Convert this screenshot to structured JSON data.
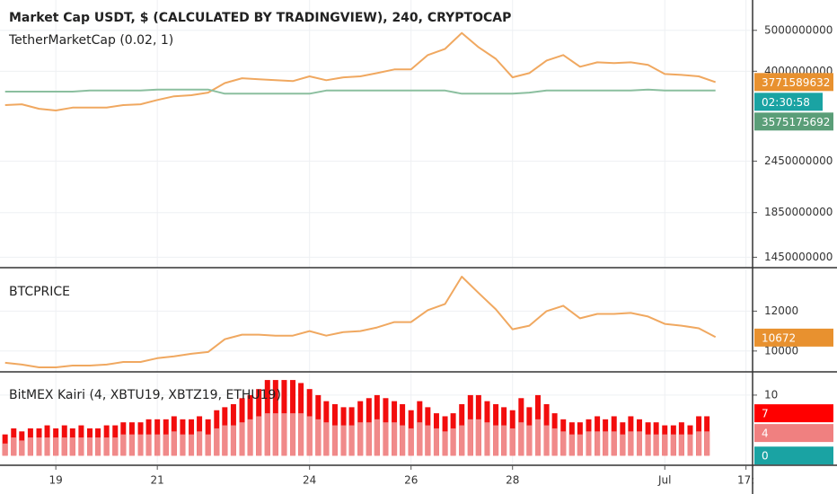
{
  "chart_data": [
    {
      "type": "line",
      "title": "Market Cap USDT, $ (CALCULATED BY TRADINGVIEW), 240, CRYPTOCAP",
      "log": true,
      "x": [
        18,
        18.33,
        18.67,
        19,
        19.33,
        19.67,
        20,
        20.33,
        20.67,
        21,
        21.33,
        21.67,
        22,
        22.33,
        22.67,
        23,
        23.33,
        23.67,
        24,
        24.33,
        24.67,
        25,
        25.33,
        25.67,
        26,
        26.33,
        26.67,
        27,
        27.33,
        27.67,
        28,
        28.33,
        28.67,
        29,
        29.33,
        29.67,
        30,
        30.33,
        30.67,
        31,
        31.33,
        31.67,
        32
      ],
      "xlim": [
        17.9,
        32.73
      ],
      "series": [
        {
          "color": "#f0a860",
          "values": [
            3325000000,
            3340000000,
            3260000000,
            3230000000,
            3280000000,
            3280000000,
            3280000000,
            3325000000,
            3340000000,
            3420000000,
            3490000000,
            3510000000,
            3560000000,
            3750000000,
            3850000000,
            3830000000,
            3810000000,
            3790000000,
            3890000000,
            3810000000,
            3870000000,
            3890000000,
            3960000000,
            4040000000,
            4040000000,
            4370000000,
            4520000000,
            4930000000,
            4560000000,
            4280000000,
            3870000000,
            3960000000,
            4240000000,
            4370000000,
            4100000000,
            4200000000,
            4180000000,
            4200000000,
            4140000000,
            3940000000,
            3920000000,
            3890000000,
            3770000000
          ]
        },
        {
          "name": "TetherMarketCap (0.02, 1)",
          "color": "#8bbf9f",
          "values": [
            3580000000,
            3580000000,
            3580000000,
            3580000000,
            3580000000,
            3600000000,
            3600000000,
            3600000000,
            3600000000,
            3620000000,
            3620000000,
            3620000000,
            3620000000,
            3540000000,
            3540000000,
            3540000000,
            3540000000,
            3540000000,
            3540000000,
            3600000000,
            3600000000,
            3600000000,
            3600000000,
            3600000000,
            3600000000,
            3600000000,
            3600000000,
            3540000000,
            3540000000,
            3540000000,
            3540000000,
            3560000000,
            3600000000,
            3600000000,
            3600000000,
            3600000000,
            3600000000,
            3600000000,
            3620000000,
            3600000000,
            3600000000,
            3600000000,
            3600000000
          ]
        }
      ],
      "ylim": [
        1370000000,
        5900000000
      ],
      "yticks": [
        5000000000,
        4000000000,
        2450000000,
        1850000000,
        1450000000
      ],
      "price_labels": [
        {
          "value": 3771589632,
          "color": "#e8912f"
        },
        {
          "value": 3575175692,
          "color": "#5a9e78"
        }
      ],
      "countdown": {
        "label": "02:30:58",
        "color": "#1aa3a3"
      }
    },
    {
      "type": "line",
      "title": "BTCPRICE",
      "x": [
        18,
        18.33,
        18.67,
        19,
        19.33,
        19.67,
        20,
        20.33,
        20.67,
        21,
        21.33,
        21.67,
        22,
        22.33,
        22.67,
        23,
        23.33,
        23.67,
        24,
        24.33,
        24.67,
        25,
        25.33,
        25.67,
        26,
        26.33,
        26.67,
        27,
        27.33,
        27.67,
        28,
        28.33,
        28.67,
        29,
        29.33,
        29.67,
        30,
        30.33,
        30.67,
        31,
        31.33,
        31.67,
        32
      ],
      "xlim": [
        17.9,
        32.73
      ],
      "series": [
        {
          "color": "#f0a860",
          "values": [
            9410,
            9320,
            9180,
            9180,
            9270,
            9270,
            9320,
            9450,
            9450,
            9640,
            9730,
            9860,
            9950,
            10590,
            10820,
            10820,
            10770,
            10770,
            11000,
            10770,
            10950,
            11000,
            11180,
            11450,
            11450,
            12050,
            12360,
            13730,
            12910,
            12090,
            11090,
            11270,
            12000,
            12270,
            11640,
            11860,
            11860,
            11910,
            11730,
            11360,
            11270,
            11140,
            10700
          ]
        }
      ],
      "ylim": [
        8955,
        14090
      ],
      "yticks": [
        12000,
        10000
      ],
      "price_labels": [
        {
          "value": 10672,
          "color": "#e8912f"
        }
      ],
      "xticks": [
        {
          "value": 19,
          "label": "19"
        },
        {
          "value": 21,
          "label": "21"
        },
        {
          "value": 24,
          "label": "24"
        },
        {
          "value": 26,
          "label": "26"
        },
        {
          "value": 28,
          "label": "28"
        },
        {
          "value": 31,
          "label": "Jul"
        },
        {
          "value": 32.6,
          "label": "17:"
        }
      ]
    },
    {
      "type": "bar",
      "title": "BitMEX Kairi (4, XBTU19, XBTZ19, ETHU19)",
      "x": [
        18,
        18.17,
        18.33,
        18.5,
        18.67,
        18.83,
        19,
        19.17,
        19.33,
        19.5,
        19.67,
        19.83,
        20,
        20.17,
        20.33,
        20.5,
        20.67,
        20.83,
        21,
        21.17,
        21.33,
        21.5,
        21.67,
        21.83,
        22,
        22.17,
        22.33,
        22.5,
        22.67,
        22.83,
        23,
        23.17,
        23.33,
        23.5,
        23.67,
        23.83,
        24,
        24.17,
        24.33,
        24.5,
        24.67,
        24.83,
        25,
        25.17,
        25.33,
        25.5,
        25.67,
        25.83,
        26,
        26.17,
        26.33,
        26.5,
        26.67,
        26.83,
        27,
        27.17,
        27.33,
        27.5,
        27.67,
        27.83,
        28,
        28.17,
        28.33,
        28.5,
        28.67,
        28.83,
        29,
        29.17,
        29.33,
        29.5,
        29.67,
        29.83,
        30,
        30.17,
        30.33,
        30.5,
        30.67,
        30.83,
        31,
        31.17,
        31.33,
        31.5,
        31.67,
        31.83
      ],
      "xlim": [
        17.9,
        32.73
      ],
      "series": [
        {
          "color": "#f20d0d",
          "values": [
            3.5,
            4.5,
            4,
            4.5,
            4.5,
            5,
            4.5,
            5,
            4.5,
            5,
            4.5,
            4.5,
            5,
            5,
            5.5,
            5.5,
            5.5,
            6,
            6,
            6,
            6.5,
            6,
            6,
            6.5,
            6,
            7.5,
            8,
            8.5,
            9.5,
            10,
            11,
            12.5,
            12.5,
            12.5,
            12.5,
            12,
            11,
            10,
            9,
            8.5,
            8,
            8,
            9,
            9.5,
            10,
            9.5,
            9,
            8.5,
            7.5,
            9,
            8,
            7,
            6.5,
            7,
            8.5,
            10,
            10,
            9,
            8.5,
            8,
            7.5,
            9.5,
            8,
            10,
            8.5,
            7,
            6,
            5.5,
            5.5,
            6,
            6.5,
            6,
            6.5,
            5.5,
            6.5,
            6,
            5.5,
            5.5,
            5,
            5,
            5.5,
            5,
            6.5,
            6.5
          ]
        },
        {
          "color": "#f08a8a",
          "values": [
            2,
            3,
            2.5,
            3,
            3,
            3,
            3,
            3,
            3,
            3,
            3,
            3,
            3,
            3,
            3.5,
            3.5,
            3.5,
            3.5,
            3.5,
            3.5,
            4,
            3.5,
            3.5,
            4,
            3.5,
            4.5,
            5,
            5,
            5.5,
            6,
            6.5,
            7,
            7,
            7,
            7,
            7,
            6.5,
            6,
            5.5,
            5,
            5,
            5,
            5.5,
            5.5,
            6,
            5.5,
            5.5,
            5,
            4.5,
            5.5,
            5,
            4.5,
            4,
            4.5,
            5,
            6,
            6,
            5.5,
            5,
            5,
            4.5,
            5.5,
            5,
            6,
            5,
            4.5,
            4,
            3.5,
            3.5,
            4,
            4,
            4,
            4,
            3.5,
            4,
            4,
            3.5,
            3.5,
            3.5,
            3.5,
            3.5,
            3.5,
            4,
            4
          ]
        }
      ],
      "ylim": [
        -1.6,
        13.7
      ],
      "yticks": [
        10
      ],
      "price_labels": [
        {
          "value": 7,
          "color": "#ff0000"
        },
        {
          "value": 4,
          "color": "#f08080"
        },
        {
          "value": 0,
          "color": "#1aa3a3"
        }
      ]
    }
  ]
}
